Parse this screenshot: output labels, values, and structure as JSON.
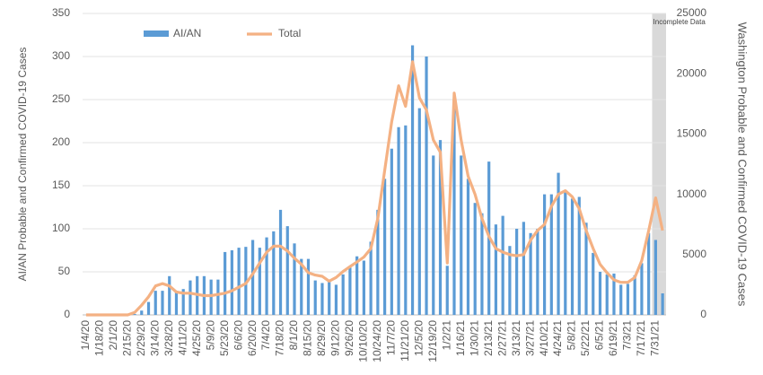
{
  "chart_data": {
    "type": "bar_line",
    "y_label": "AI/AN Probable and Confirmed COVID-19 Cases",
    "y2_label": "Washington Probable and Confirmed COVID-19 Cases",
    "annotation": "Incomplete Data",
    "categories": [
      "1/4/20",
      null,
      "1/18/20",
      null,
      "2/1/20",
      null,
      "2/15/20",
      null,
      "2/29/20",
      null,
      "3/14/20",
      null,
      "3/28/20",
      null,
      "4/11/20",
      null,
      "4/25/20",
      null,
      "5/9/20",
      null,
      "5/23/20",
      null,
      "6/6/20",
      null,
      "6/20/20",
      null,
      "7/4/20",
      null,
      "7/18/20",
      null,
      "8/1/20",
      null,
      "8/15/20",
      null,
      "8/29/20",
      null,
      "9/12/20",
      null,
      "9/26/20",
      null,
      "10/10/20",
      null,
      "10/24/20",
      null,
      "11/7/20",
      null,
      "11/21/20",
      null,
      "12/5/20",
      null,
      "12/19/20",
      null,
      "1/2/21",
      null,
      "1/16/21",
      null,
      "1/30/21",
      null,
      "2/13/21",
      null,
      "2/27/21",
      null,
      "3/13/21",
      null,
      "3/27/21",
      null,
      "4/10/21",
      null,
      "4/24/21",
      null,
      "5/8/21",
      null,
      "5/22/21",
      null,
      "6/5/21",
      null,
      "6/19/21",
      null,
      "7/3/21",
      null,
      "7/17/21",
      null,
      "7/31/21",
      null
    ],
    "series": [
      {
        "name": "AI/AN",
        "color": "#5b9bd5",
        "values": [
          0,
          0,
          0,
          0,
          0,
          0,
          0,
          1,
          5,
          15,
          28,
          28,
          45,
          28,
          30,
          40,
          45,
          45,
          41,
          41,
          73,
          75,
          78,
          79,
          87,
          78,
          90,
          97,
          122,
          103,
          83,
          65,
          65,
          40,
          37,
          40,
          35,
          47,
          55,
          68,
          63,
          85,
          122,
          158,
          193,
          218,
          220,
          313,
          240,
          300,
          185,
          203,
          57,
          250,
          185,
          158,
          130,
          118,
          178,
          105,
          115,
          80,
          100,
          108,
          95,
          100,
          140,
          140,
          165,
          145,
          135,
          137,
          107,
          72,
          50,
          47,
          48,
          35,
          36,
          46,
          60,
          95,
          87,
          25
        ]
      },
      {
        "name": "Total",
        "color": "#f4b183",
        "axis": "y2",
        "values": [
          0,
          0,
          0,
          0,
          0,
          0,
          0,
          200,
          800,
          1500,
          2400,
          2600,
          2400,
          1900,
          1800,
          1800,
          1700,
          1600,
          1600,
          1700,
          1800,
          2000,
          2300,
          2600,
          3400,
          4300,
          5200,
          5700,
          5700,
          5300,
          4700,
          4200,
          3500,
          3300,
          3200,
          2800,
          3100,
          3600,
          4000,
          4400,
          4800,
          5500,
          8000,
          12000,
          16000,
          19000,
          17300,
          21000,
          18000,
          17000,
          14500,
          13500,
          4300,
          18400,
          14500,
          11500,
          10000,
          8000,
          6500,
          5500,
          5200,
          5000,
          4900,
          5000,
          6200,
          7000,
          7500,
          9000,
          10000,
          10300,
          9800,
          8800,
          7000,
          5500,
          4200,
          3500,
          2900,
          2700,
          2700,
          3100,
          4500,
          7000,
          9700,
          7000
        ]
      }
    ],
    "ylim": [
      0,
      350
    ],
    "yticks": [
      0,
      50,
      100,
      150,
      200,
      250,
      300,
      350
    ],
    "y2lim": [
      0,
      25000
    ],
    "y2ticks": [
      0,
      5000,
      10000,
      15000,
      20000,
      25000
    ],
    "grid": true
  }
}
